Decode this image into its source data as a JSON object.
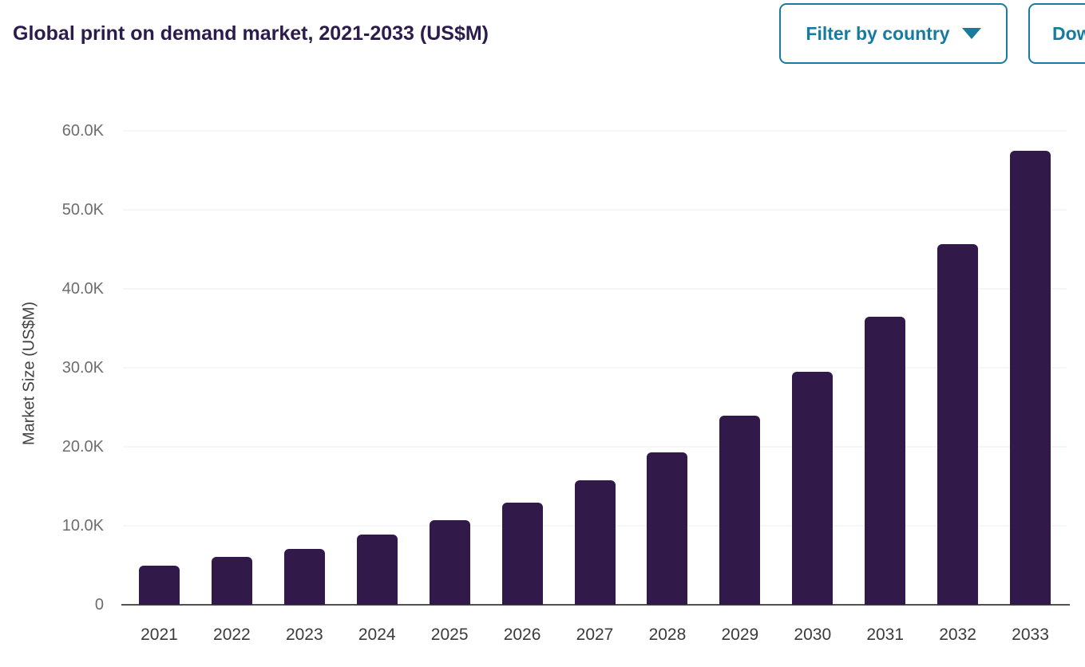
{
  "header": {
    "title": "Global print on demand market, 2021-2033 (US$M)",
    "filter_button": {
      "label": "Filter by country",
      "icon": "chevron-down-icon"
    },
    "download_button": {
      "label": "Download"
    }
  },
  "colors": {
    "bar": "#31194a",
    "title_text": "#2b1c4d",
    "button_accent": "#177b9f",
    "gridline": "#ececec",
    "axis_line": "#55514e",
    "tick_text": "#6d6d6d"
  },
  "chart_data": {
    "type": "bar",
    "title": "Global print on demand market, 2021-2033 (US$M)",
    "xlabel": "",
    "ylabel": "Market Size (US$M)",
    "categories": [
      "2021",
      "2022",
      "2023",
      "2024",
      "2025",
      "2026",
      "2027",
      "2028",
      "2029",
      "2030",
      "2031",
      "2032",
      "2033"
    ],
    "values": [
      5000,
      6100,
      7100,
      8900,
      10700,
      12900,
      15800,
      19300,
      23900,
      29500,
      36500,
      45700,
      57500
    ],
    "ylim": [
      0,
      60000
    ],
    "yticks": {
      "values": [
        0,
        10000,
        20000,
        30000,
        40000,
        50000,
        60000
      ],
      "labels": [
        "0",
        "10.0K",
        "20.0K",
        "30.0K",
        "40.0K",
        "50.0K",
        "60.0K"
      ]
    },
    "grid": "horizontal",
    "legend": "none",
    "bar_color": "#31194a"
  }
}
